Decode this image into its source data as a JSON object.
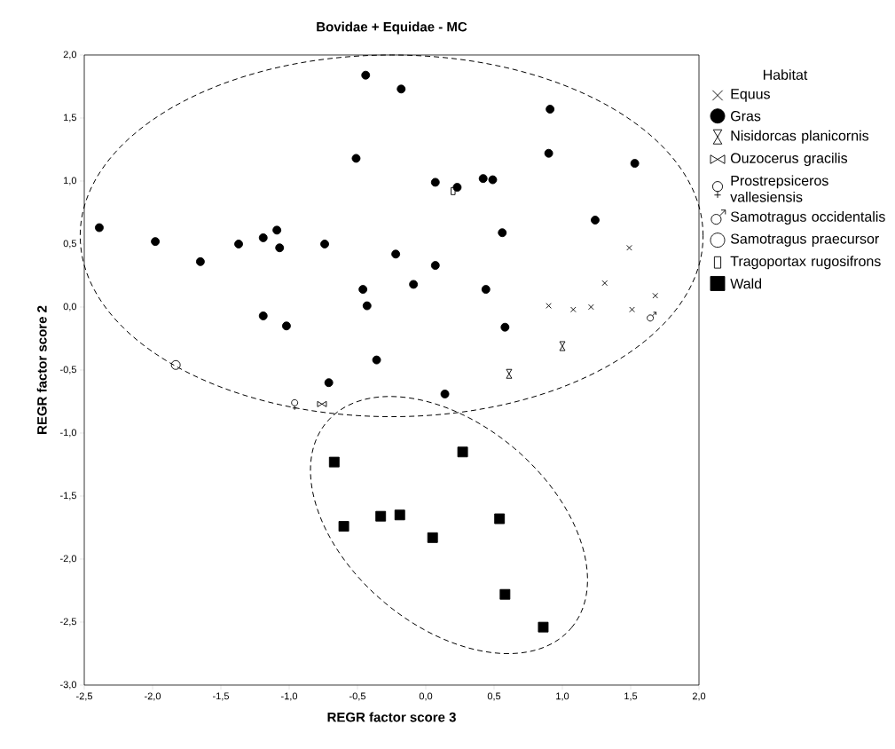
{
  "chart_data": {
    "type": "scatter",
    "title": "Bovidae + Equidae - MC",
    "xlabel": "REGR factor score 3",
    "ylabel": "REGR factor score 2",
    "legend_title": "Habitat",
    "legend": "right",
    "grid": false,
    "xlim": [
      -2.5,
      2.0
    ],
    "ylim": [
      -3.0,
      2.0
    ],
    "xticks": [
      {
        "value": -2.5,
        "label": "-2,5"
      },
      {
        "value": -2.0,
        "label": "-2,0"
      },
      {
        "value": -1.5,
        "label": "-1,5"
      },
      {
        "value": -1.0,
        "label": "-1,0"
      },
      {
        "value": -0.5,
        "label": "-0,5"
      },
      {
        "value": 0.0,
        "label": "0,0"
      },
      {
        "value": 0.5,
        "label": "0,5"
      },
      {
        "value": 1.0,
        "label": "1,0"
      },
      {
        "value": 1.5,
        "label": "1,5"
      },
      {
        "value": 2.0,
        "label": "2,0"
      }
    ],
    "yticks": [
      {
        "value": -3.0,
        "label": "-3,0"
      },
      {
        "value": -2.5,
        "label": "-2,5"
      },
      {
        "value": -2.0,
        "label": "-2,0"
      },
      {
        "value": -1.5,
        "label": "-1,5"
      },
      {
        "value": -1.0,
        "label": "-1,0"
      },
      {
        "value": -0.5,
        "label": "-0,5"
      },
      {
        "value": 0.0,
        "label": "0,0"
      },
      {
        "value": 0.5,
        "label": "0,5"
      },
      {
        "value": 1.0,
        "label": "1,0"
      },
      {
        "value": 1.5,
        "label": "1,5"
      },
      {
        "value": 2.0,
        "label": "2,0"
      }
    ],
    "series": [
      {
        "name": "Equus",
        "color": "#000000",
        "marker": "cross",
        "x": [
          1.49,
          1.31,
          0.9,
          1.08,
          1.21,
          1.51,
          1.68
        ],
        "values": [
          0.47,
          0.19,
          0.01,
          -0.02,
          0.0,
          -0.02,
          0.09
        ]
      },
      {
        "name": "Gras",
        "color": "#000000",
        "marker": "circle",
        "x": [
          -0.44,
          -0.51,
          -2.39,
          -1.98,
          -1.65,
          -1.37,
          -1.19,
          -1.09,
          -1.07,
          -0.74,
          -0.46,
          -0.43,
          -1.19,
          -1.02,
          -0.36,
          -0.71,
          -0.18,
          0.91,
          0.9,
          1.53,
          0.07,
          0.23,
          0.42,
          0.49,
          1.24,
          0.56,
          -0.22,
          0.07,
          -0.09,
          0.44,
          0.58,
          0.14
        ],
        "values": [
          1.84,
          1.18,
          0.63,
          0.52,
          0.36,
          0.5,
          0.55,
          0.61,
          0.47,
          0.5,
          0.14,
          0.01,
          -0.07,
          -0.15,
          -0.42,
          -0.6,
          1.73,
          1.57,
          1.22,
          1.14,
          0.99,
          0.95,
          1.02,
          1.01,
          0.69,
          0.59,
          0.42,
          0.33,
          0.18,
          0.14,
          -0.16,
          -0.69
        ]
      },
      {
        "name": "Nisidorcas planicornis",
        "color": "#000000",
        "marker": "diamond",
        "x": [
          1.0,
          0.61
        ],
        "values": [
          -0.31,
          -0.53
        ]
      },
      {
        "name": "Ouzocerus gracilis",
        "color": "#000000",
        "marker": "diamond",
        "x": [
          -0.76
        ],
        "values": [
          -0.77
        ]
      },
      {
        "name": "Prostrepsiceros vallesiensis",
        "color": "#000000",
        "marker": "cross",
        "x": [
          -0.96
        ],
        "values": [
          -0.77
        ]
      },
      {
        "name": "Samotragus occidentalis",
        "color": "#000000",
        "marker": "cross",
        "x": [
          1.65
        ],
        "values": [
          -0.08
        ]
      },
      {
        "name": "Samotragus praecursor",
        "color": "#000000",
        "marker": "circle",
        "x": [
          -1.83
        ],
        "values": [
          -0.46
        ]
      },
      {
        "name": "Tragoportax rugosifrons",
        "color": "#000000",
        "marker": "square",
        "x": [
          0.2
        ],
        "values": [
          0.92
        ]
      },
      {
        "name": "Wald",
        "color": "#000000",
        "marker": "square",
        "x": [
          -0.67,
          0.27,
          -0.6,
          -0.33,
          -0.19,
          0.05,
          0.54,
          0.58,
          0.86
        ],
        "values": [
          -1.23,
          -1.15,
          -1.74,
          -1.66,
          -1.65,
          -1.83,
          -1.68,
          -2.28,
          -2.54
        ]
      }
    ]
  }
}
